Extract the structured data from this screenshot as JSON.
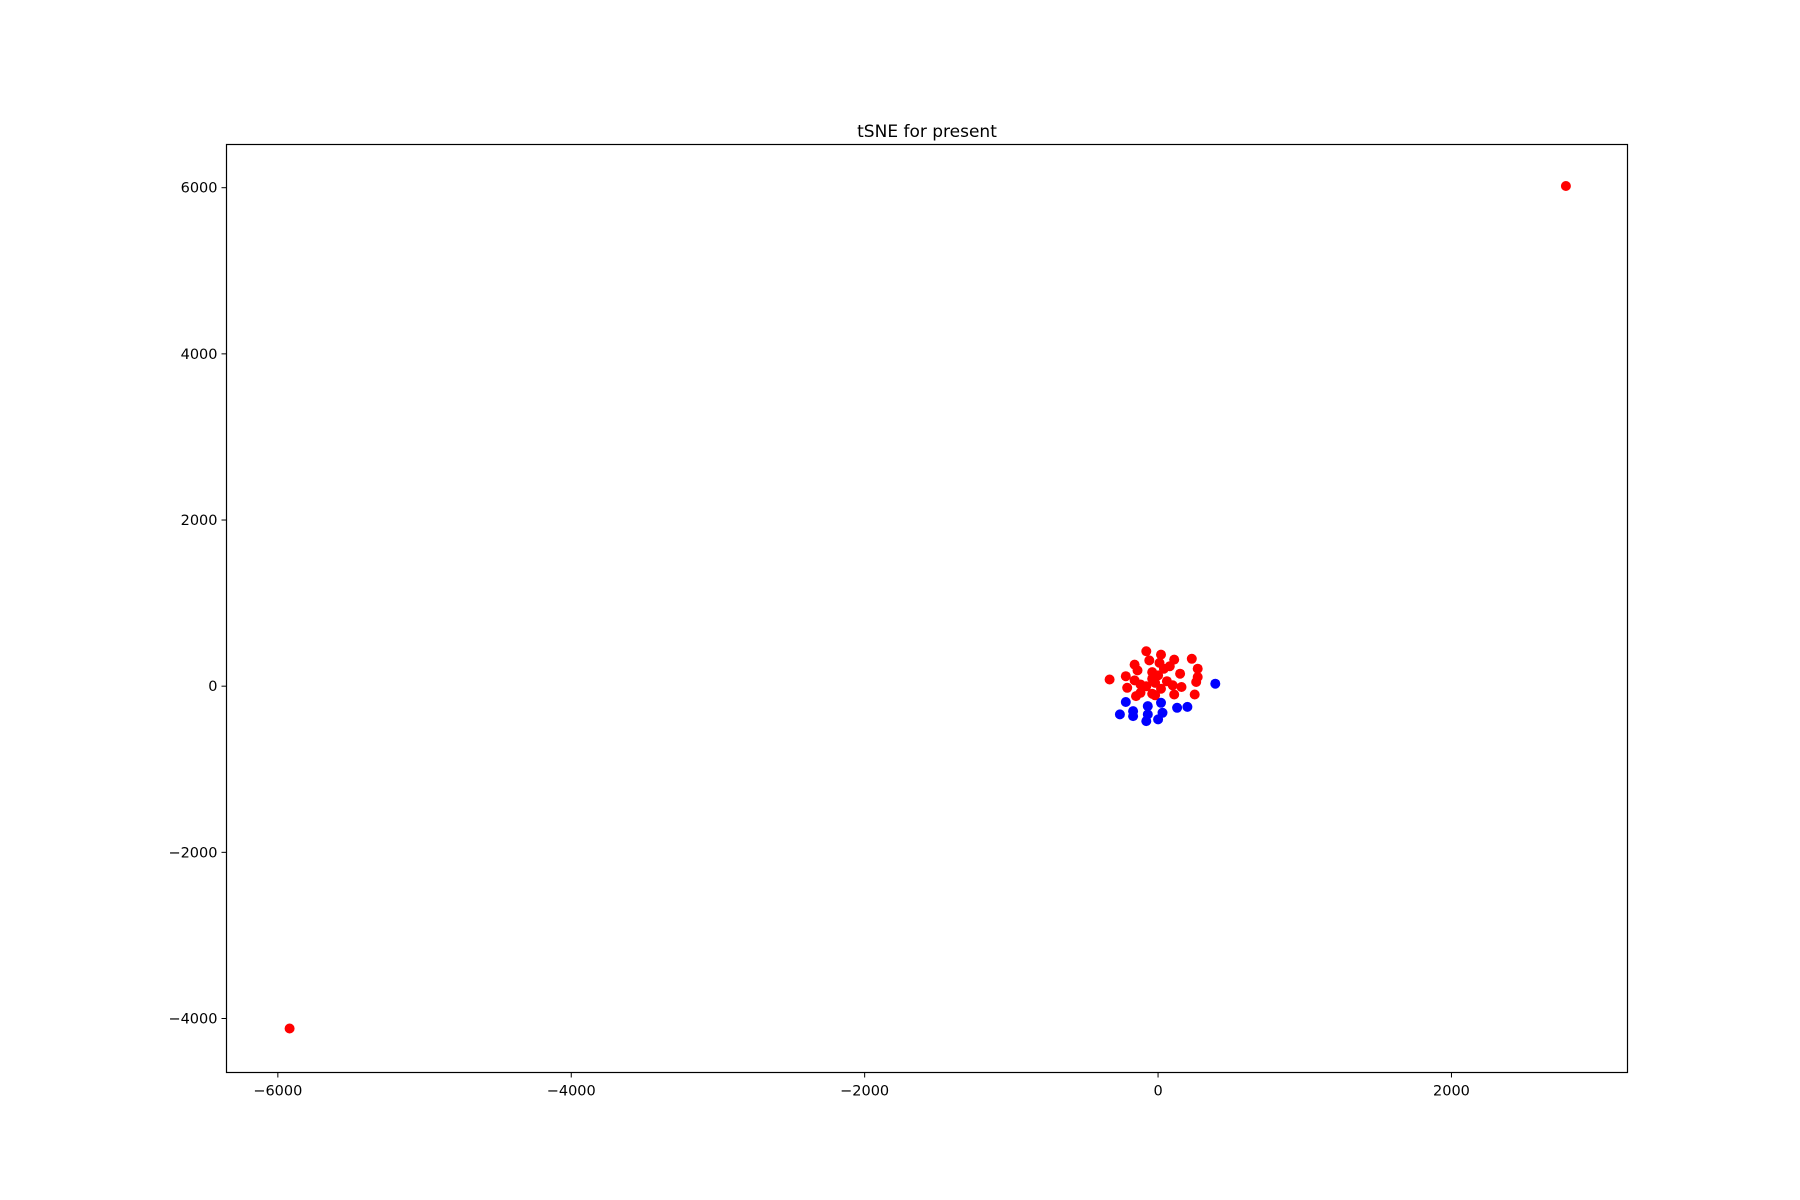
{
  "chart_data": {
    "type": "scatter",
    "title": "tSNE for present",
    "xlabel": "",
    "ylabel": "",
    "xlim": [
      -6350,
      3200
    ],
    "ylim": [
      -4650,
      6520
    ],
    "x_ticks": [
      -6000,
      -4000,
      -2000,
      0,
      2000
    ],
    "y_ticks": [
      -4000,
      -2000,
      0,
      2000,
      4000,
      6000
    ],
    "x_tick_labels": [
      "−6000",
      "−4000",
      "−2000",
      "0",
      "2000"
    ],
    "y_tick_labels": [
      "−4000",
      "−2000",
      "0",
      "2000",
      "4000",
      "6000"
    ],
    "grid": false,
    "legend": "none",
    "series": [
      {
        "color": "#ff0000",
        "points": [
          [
            2780,
            6020
          ],
          [
            -5920,
            -4120
          ],
          [
            -330,
            80
          ],
          [
            -80,
            420
          ],
          [
            20,
            380
          ],
          [
            110,
            320
          ],
          [
            230,
            330
          ],
          [
            -60,
            310
          ],
          [
            10,
            280
          ],
          [
            -160,
            260
          ],
          [
            80,
            240
          ],
          [
            40,
            210
          ],
          [
            270,
            210
          ],
          [
            -140,
            190
          ],
          [
            -40,
            170
          ],
          [
            150,
            150
          ],
          [
            -220,
            120
          ],
          [
            0,
            130
          ],
          [
            270,
            110
          ],
          [
            -40,
            90
          ],
          [
            -160,
            70
          ],
          [
            60,
            60
          ],
          [
            260,
            50
          ],
          [
            -20,
            40
          ],
          [
            -120,
            20
          ],
          [
            -210,
            -20
          ],
          [
            100,
            10
          ],
          [
            160,
            -10
          ],
          [
            -80,
            0
          ],
          [
            20,
            -30
          ],
          [
            -120,
            -80
          ],
          [
            -40,
            -90
          ],
          [
            110,
            -100
          ],
          [
            250,
            -100
          ],
          [
            -150,
            -120
          ],
          [
            -20,
            -110
          ]
        ]
      },
      {
        "color": "#0000ff",
        "points": [
          [
            390,
            30
          ],
          [
            -220,
            -190
          ],
          [
            20,
            -200
          ],
          [
            -70,
            -240
          ],
          [
            130,
            -260
          ],
          [
            200,
            -250
          ],
          [
            -170,
            -300
          ],
          [
            30,
            -320
          ],
          [
            -260,
            -340
          ],
          [
            -70,
            -340
          ],
          [
            -170,
            -360
          ],
          [
            -80,
            -420
          ],
          [
            0,
            -400
          ]
        ]
      }
    ]
  }
}
